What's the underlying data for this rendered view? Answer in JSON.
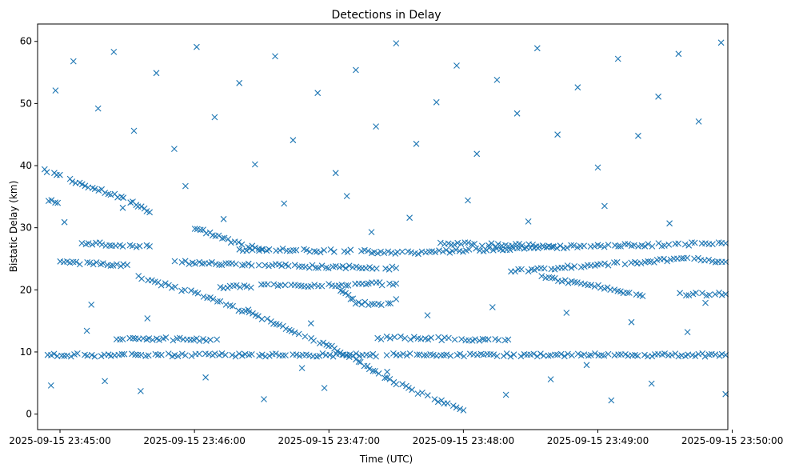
{
  "chart_data": {
    "type": "scatter",
    "title": "Detections in Delay",
    "xlabel": "Time (UTC)",
    "ylabel": "Bistatic Delay (km)",
    "marker": "x",
    "color": "#1f77b4",
    "grid": false,
    "x_unit": "UTC time",
    "xlim": [
      "2025-09-15 23:44:50",
      "2025-09-15 23:49:58"
    ],
    "ylim": [
      -2.5,
      62.8
    ],
    "x_ticks": [
      "2025-09-15 23:45:00",
      "2025-09-15 23:46:00",
      "2025-09-15 23:47:00",
      "2025-09-15 23:48:00",
      "2025-09-15 23:49:00",
      "2025-09-15 23:50:00"
    ],
    "y_ticks": [
      0,
      10,
      20,
      30,
      40,
      50,
      60
    ],
    "tracks": [
      {
        "desc": "descending track",
        "points": [
          [
            "2025-09-15 23:44:53",
            39.3
          ],
          [
            "2025-09-15 23:45:10",
            37.0
          ],
          [
            "2025-09-15 23:45:30",
            34.5
          ],
          [
            "2025-09-15 23:45:40",
            32.5
          ]
        ]
      },
      {
        "desc": "descending track",
        "points": [
          [
            "2025-09-15 23:45:35",
            22.0
          ],
          [
            "2025-09-15 23:46:00",
            19.5
          ],
          [
            "2025-09-15 23:46:30",
            15.5
          ],
          [
            "2025-09-15 23:47:00",
            11.0
          ],
          [
            "2025-09-15 23:47:30",
            5.0
          ],
          [
            "2025-09-15 23:47:50",
            2.0
          ],
          [
            "2025-09-15 23:48:00",
            0.6
          ]
        ]
      },
      {
        "desc": "descending track",
        "points": [
          [
            "2025-09-15 23:46:00",
            30.0
          ],
          [
            "2025-09-15 23:46:15",
            28.0
          ],
          [
            "2025-09-15 23:46:30",
            26.5
          ]
        ]
      },
      {
        "desc": "near-constant line",
        "points": [
          [
            "2025-09-15 23:44:53",
            9.5
          ],
          [
            "2025-09-15 23:49:57",
            9.5
          ]
        ]
      },
      {
        "desc": "near-constant line",
        "points": [
          [
            "2025-09-15 23:45:50",
            24.5
          ],
          [
            "2025-09-15 23:46:45",
            23.8
          ],
          [
            "2025-09-15 23:47:30",
            23.5
          ]
        ]
      },
      {
        "desc": "near-constant line",
        "points": [
          [
            "2025-09-15 23:46:20",
            26.5
          ],
          [
            "2025-09-15 23:47:40",
            26.0
          ],
          [
            "2025-09-15 23:48:30",
            26.8
          ],
          [
            "2025-09-15 23:49:57",
            27.5
          ]
        ]
      },
      {
        "desc": "near-constant line",
        "points": [
          [
            "2025-09-15 23:46:10",
            20.5
          ],
          [
            "2025-09-15 23:47:30",
            21.0
          ]
        ]
      },
      {
        "desc": "near-constant line",
        "points": [
          [
            "2025-09-15 23:47:20",
            12.3
          ],
          [
            "2025-09-15 23:48:10",
            12.0
          ],
          [
            "2025-09-15 23:48:20",
            12.0
          ]
        ]
      },
      {
        "desc": "near-constant line",
        "points": [
          [
            "2025-09-15 23:48:20",
            23.0
          ],
          [
            "2025-09-15 23:49:00",
            24.0
          ],
          [
            "2025-09-15 23:49:40",
            25.0
          ],
          [
            "2025-09-15 23:49:57",
            24.5
          ]
        ]
      },
      {
        "desc": "descending track",
        "points": [
          [
            "2025-09-15 23:48:35",
            22.0
          ],
          [
            "2025-09-15 23:49:00",
            20.5
          ],
          [
            "2025-09-15 23:49:20",
            19.0
          ]
        ]
      },
      {
        "desc": "arc",
        "points": [
          [
            "2025-09-15 23:47:05",
            20.0
          ],
          [
            "2025-09-15 23:47:12",
            18.0
          ],
          [
            "2025-09-15 23:47:25",
            17.5
          ],
          [
            "2025-09-15 23:47:30",
            18.5
          ]
        ]
      },
      {
        "desc": "near-constant line",
        "points": [
          [
            "2025-09-15 23:45:00",
            24.5
          ],
          [
            "2025-09-15 23:45:30",
            24.0
          ]
        ]
      },
      {
        "desc": "near-constant line",
        "points": [
          [
            "2025-09-15 23:45:10",
            27.5
          ],
          [
            "2025-09-15 23:45:40",
            27.0
          ]
        ]
      },
      {
        "desc": "near-constant line",
        "points": [
          [
            "2025-09-15 23:45:25",
            12.2
          ],
          [
            "2025-09-15 23:46:10",
            12.0
          ]
        ]
      },
      {
        "desc": "near-constant line",
        "points": [
          [
            "2025-09-15 23:47:50",
            27.5
          ],
          [
            "2025-09-15 23:48:40",
            27.0
          ]
        ]
      },
      {
        "desc": "near-constant line",
        "points": [
          [
            "2025-09-15 23:44:55",
            34.5
          ],
          [
            "2025-09-15 23:44:59",
            34.0
          ]
        ]
      },
      {
        "desc": "near-constant line",
        "points": [
          [
            "2025-09-15 23:49:35",
            19.3
          ],
          [
            "2025-09-15 23:49:57",
            19.3
          ]
        ]
      }
    ],
    "scatter_points": [
      [
        "2025-09-15 23:44:58",
        52.1
      ],
      [
        "2025-09-15 23:45:06",
        56.8
      ],
      [
        "2025-09-15 23:45:17",
        49.2
      ],
      [
        "2025-09-15 23:45:24",
        58.3
      ],
      [
        "2025-09-15 23:45:33",
        45.6
      ],
      [
        "2025-09-15 23:45:43",
        54.9
      ],
      [
        "2025-09-15 23:45:51",
        42.7
      ],
      [
        "2025-09-15 23:46:01",
        59.1
      ],
      [
        "2025-09-15 23:46:09",
        47.8
      ],
      [
        "2025-09-15 23:46:20",
        53.3
      ],
      [
        "2025-09-15 23:46:27",
        40.2
      ],
      [
        "2025-09-15 23:46:36",
        57.6
      ],
      [
        "2025-09-15 23:46:44",
        44.1
      ],
      [
        "2025-09-15 23:46:55",
        51.7
      ],
      [
        "2025-09-15 23:47:03",
        38.8
      ],
      [
        "2025-09-15 23:47:12",
        55.4
      ],
      [
        "2025-09-15 23:47:21",
        46.3
      ],
      [
        "2025-09-15 23:47:30",
        59.7
      ],
      [
        "2025-09-15 23:47:39",
        43.5
      ],
      [
        "2025-09-15 23:47:48",
        50.2
      ],
      [
        "2025-09-15 23:47:57",
        56.1
      ],
      [
        "2025-09-15 23:48:06",
        41.9
      ],
      [
        "2025-09-15 23:48:15",
        53.8
      ],
      [
        "2025-09-15 23:48:24",
        48.4
      ],
      [
        "2025-09-15 23:48:33",
        58.9
      ],
      [
        "2025-09-15 23:48:42",
        45.0
      ],
      [
        "2025-09-15 23:48:51",
        52.6
      ],
      [
        "2025-09-15 23:49:00",
        39.7
      ],
      [
        "2025-09-15 23:49:09",
        57.2
      ],
      [
        "2025-09-15 23:49:18",
        44.8
      ],
      [
        "2025-09-15 23:49:27",
        51.1
      ],
      [
        "2025-09-15 23:49:36",
        58.0
      ],
      [
        "2025-09-15 23:49:45",
        47.1
      ],
      [
        "2025-09-15 23:49:55",
        59.8
      ],
      [
        "2025-09-15 23:45:02",
        30.9
      ],
      [
        "2025-09-15 23:45:14",
        17.6
      ],
      [
        "2025-09-15 23:45:28",
        33.2
      ],
      [
        "2025-09-15 23:45:39",
        15.4
      ],
      [
        "2025-09-15 23:45:56",
        36.7
      ],
      [
        "2025-09-15 23:46:13",
        31.4
      ],
      [
        "2025-09-15 23:46:24",
        16.8
      ],
      [
        "2025-09-15 23:46:40",
        33.9
      ],
      [
        "2025-09-15 23:46:52",
        14.6
      ],
      [
        "2025-09-15 23:47:08",
        35.1
      ],
      [
        "2025-09-15 23:47:19",
        29.3
      ],
      [
        "2025-09-15 23:47:36",
        31.6
      ],
      [
        "2025-09-15 23:47:44",
        15.9
      ],
      [
        "2025-09-15 23:48:02",
        34.4
      ],
      [
        "2025-09-15 23:48:13",
        17.2
      ],
      [
        "2025-09-15 23:48:29",
        31.0
      ],
      [
        "2025-09-15 23:48:46",
        16.3
      ],
      [
        "2025-09-15 23:49:03",
        33.5
      ],
      [
        "2025-09-15 23:49:15",
        14.8
      ],
      [
        "2025-09-15 23:49:32",
        30.7
      ],
      [
        "2025-09-15 23:49:48",
        17.9
      ],
      [
        "2025-09-15 23:44:56",
        4.6
      ],
      [
        "2025-09-15 23:45:20",
        5.3
      ],
      [
        "2025-09-15 23:45:36",
        3.7
      ],
      [
        "2025-09-15 23:46:05",
        5.9
      ],
      [
        "2025-09-15 23:46:31",
        2.4
      ],
      [
        "2025-09-15 23:46:58",
        4.2
      ],
      [
        "2025-09-15 23:47:26",
        6.8
      ],
      [
        "2025-09-15 23:48:19",
        3.1
      ],
      [
        "2025-09-15 23:48:39",
        5.6
      ],
      [
        "2025-09-15 23:49:06",
        2.2
      ],
      [
        "2025-09-15 23:49:24",
        4.9
      ],
      [
        "2025-09-15 23:49:57",
        3.2
      ],
      [
        "2025-09-15 23:45:12",
        13.4
      ],
      [
        "2025-09-15 23:46:48",
        7.4
      ],
      [
        "2025-09-15 23:48:55",
        7.9
      ],
      [
        "2025-09-15 23:49:40",
        13.2
      ]
    ]
  }
}
